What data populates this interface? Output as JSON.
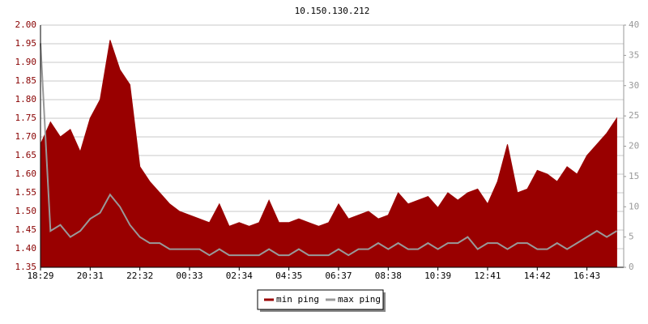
{
  "chart_data": {
    "type": "area-line",
    "title": "10.150.130.212",
    "categories": [
      "18:29",
      null,
      null,
      null,
      null,
      "20:31",
      null,
      null,
      null,
      null,
      "22:32",
      null,
      null,
      null,
      null,
      "00:33",
      null,
      null,
      null,
      null,
      "02:34",
      null,
      null,
      null,
      null,
      "04:35",
      null,
      null,
      null,
      null,
      "06:37",
      null,
      null,
      null,
      null,
      "08:38",
      null,
      null,
      null,
      null,
      "10:39",
      null,
      null,
      null,
      null,
      "12:41",
      null,
      null,
      null,
      null,
      "14:42",
      null,
      null,
      null,
      null,
      "16:43",
      null,
      null,
      null
    ],
    "series": [
      {
        "name": "min ping",
        "color": "#990000",
        "values": [
          1.68,
          1.74,
          1.7,
          1.72,
          1.66,
          1.75,
          1.8,
          1.96,
          1.88,
          1.84,
          1.62,
          1.58,
          1.55,
          1.52,
          1.5,
          1.49,
          1.48,
          1.47,
          1.52,
          1.46,
          1.47,
          1.46,
          1.47,
          1.53,
          1.47,
          1.47,
          1.48,
          1.47,
          1.46,
          1.47,
          1.52,
          1.48,
          1.49,
          1.5,
          1.48,
          1.49,
          1.55,
          1.52,
          1.53,
          1.54,
          1.51,
          1.55,
          1.53,
          1.55,
          1.56,
          1.52,
          1.58,
          1.68,
          1.55,
          1.56,
          1.61,
          1.6,
          1.58,
          1.62,
          1.6,
          1.65,
          1.68,
          1.71,
          1.75
        ]
      },
      {
        "name": "max ping",
        "color": "#999999",
        "axis": "y2",
        "values": [
          37,
          6,
          7,
          5,
          6,
          8,
          9,
          12,
          10,
          7,
          5,
          4,
          4,
          3,
          3,
          3,
          3,
          2,
          3,
          2,
          2,
          2,
          2,
          3,
          2,
          2,
          3,
          2,
          2,
          2,
          3,
          2,
          3,
          3,
          4,
          3,
          4,
          3,
          3,
          4,
          3,
          4,
          4,
          5,
          3,
          4,
          4,
          3,
          4,
          4,
          3,
          3,
          4,
          3,
          4,
          5,
          6,
          5,
          6
        ]
      }
    ],
    "ylim": [
      1.35,
      2.0
    ],
    "yticks": [
      1.35,
      {
        "value": 1.4,
        "label": "1.40"
      },
      1.45,
      {
        "value": 1.5,
        "label": "1.50"
      },
      1.55,
      {
        "value": 1.6,
        "label": "1.60"
      },
      1.65,
      {
        "value": 1.7,
        "label": "1.70"
      },
      1.75,
      {
        "value": 1.8,
        "label": "1.80"
      },
      1.85,
      {
        "value": 1.9,
        "label": "1.90"
      },
      1.95,
      {
        "value": 2.0,
        "label": "2.00"
      }
    ],
    "y2lim": [
      0,
      40
    ],
    "y2ticks": [
      0,
      5,
      10,
      15,
      20,
      25,
      30,
      35,
      40
    ],
    "grid": true
  }
}
